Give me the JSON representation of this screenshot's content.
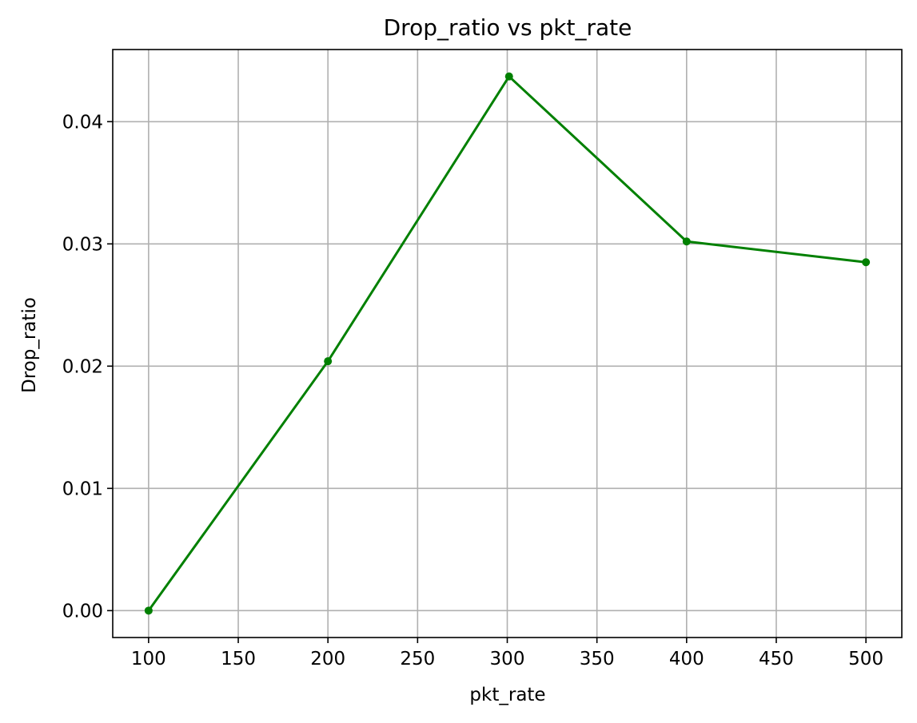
{
  "chart_data": {
    "type": "line",
    "title": "Drop_ratio vs pkt_rate",
    "xlabel": "pkt_rate",
    "ylabel": "Drop_ratio",
    "x": [
      100,
      200,
      301,
      400,
      500
    ],
    "series": [
      {
        "values": [
          0.0,
          0.0204,
          0.0437,
          0.0302,
          0.0285
        ],
        "color": "#008000",
        "marker": "circle"
      }
    ],
    "xlim": [
      80,
      520
    ],
    "ylim": [
      -0.0022,
      0.0459
    ],
    "xticks": [
      100,
      150,
      200,
      250,
      300,
      350,
      400,
      450,
      500
    ],
    "xtick_labels": [
      "100",
      "150",
      "200",
      "250",
      "300",
      "350",
      "400",
      "450",
      "500"
    ],
    "yticks": [
      0.0,
      0.01,
      0.02,
      0.03,
      0.04
    ],
    "ytick_labels": [
      "0.00",
      "0.01",
      "0.02",
      "0.03",
      "0.04"
    ],
    "grid": true,
    "colors": {
      "line": "#008000",
      "grid": "#b0b0b0",
      "axes": "#000000",
      "background": "#ffffff"
    }
  }
}
